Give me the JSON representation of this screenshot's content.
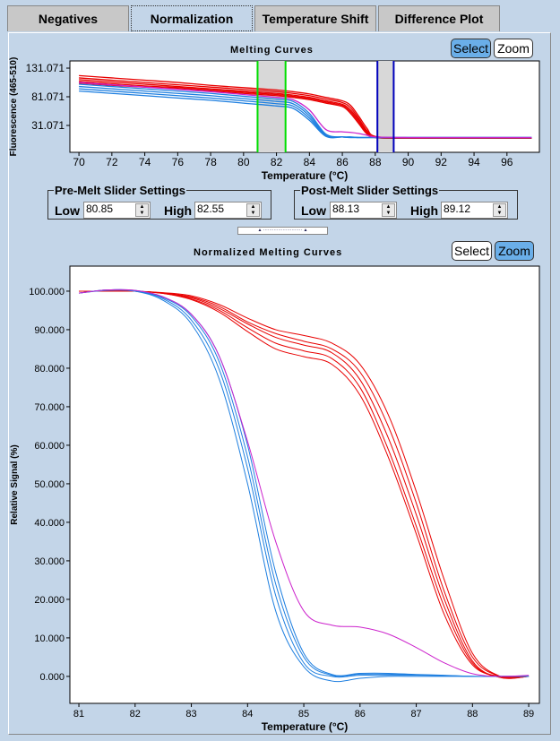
{
  "tabs": [
    {
      "label": "Negatives"
    },
    {
      "label": "Normalization",
      "active": true
    },
    {
      "label": "Temperature Shift"
    },
    {
      "label": "Difference Plot"
    }
  ],
  "top_buttons": {
    "select": "Select",
    "zoom": "Zoom",
    "active": "select"
  },
  "bottom_buttons": {
    "select": "Select",
    "zoom": "Zoom",
    "active": "zoom"
  },
  "pre_melt": {
    "title": "Pre-Melt Slider Settings",
    "low_label": "Low",
    "low": "80.85",
    "high_label": "High",
    "high": "82.55"
  },
  "post_melt": {
    "title": "Post-Melt Slider Settings",
    "low_label": "Low",
    "low": "88.13",
    "high_label": "High",
    "high": "89.12"
  },
  "colors": {
    "red": "#e80000",
    "blue": "#1e7fe0",
    "magenta": "#cc22cc",
    "pre_slider": "#00dd00",
    "post_slider": "#0000bb",
    "slider_band": "#d8d8d8"
  },
  "chart_data": [
    {
      "type": "line",
      "title": "Melting Curves",
      "xlabel": "Temperature (°C)",
      "ylabel": "Fluorescence (465-510)",
      "xlim": [
        69.45,
        97.97
      ],
      "ylim": [
        -15.8,
        143.6
      ],
      "xticks": [
        70,
        72,
        74,
        76,
        78,
        80,
        82,
        84,
        86,
        88,
        90,
        92,
        94,
        96
      ],
      "yticks": [
        31.071,
        81.071,
        131.071
      ],
      "ytick_labels": [
        "31.071",
        "81.071",
        "131.071"
      ],
      "grid": false,
      "sliders": {
        "pre": [
          80.85,
          82.55
        ],
        "post": [
          88.13,
          89.12
        ]
      },
      "x": [
        70,
        72,
        74,
        76,
        78,
        80,
        82,
        83,
        84,
        85,
        86,
        86.5,
        87,
        87.5,
        88,
        90,
        92,
        94,
        96,
        97.5
      ],
      "series": [
        {
          "color": "red",
          "values": [
            118,
            114,
            110,
            106,
            101,
            97,
            93,
            90,
            86,
            80,
            74,
            66,
            47,
            26,
            12,
            9,
            9,
            9,
            9,
            9
          ]
        },
        {
          "color": "red",
          "values": [
            114,
            110,
            106,
            102,
            98,
            94,
            90,
            87,
            83,
            77,
            71,
            62,
            43,
            22,
            10,
            9,
            9,
            9,
            9,
            9
          ]
        },
        {
          "color": "red",
          "values": [
            111,
            107,
            103,
            99,
            95,
            91,
            87,
            84,
            80,
            74,
            68,
            58,
            40,
            20,
            10,
            9,
            9,
            9,
            9,
            9
          ]
        },
        {
          "color": "red",
          "values": [
            108,
            104,
            100,
            97,
            93,
            89,
            85,
            82,
            78,
            72,
            66,
            55,
            37,
            18,
            10,
            9,
            9,
            9,
            9,
            9
          ]
        },
        {
          "color": "red",
          "values": [
            105,
            101,
            98,
            95,
            91,
            87,
            83,
            80,
            76,
            70,
            64,
            52,
            34,
            16,
            10,
            9,
            9,
            9,
            9,
            9
          ]
        },
        {
          "color": "blue",
          "values": [
            103,
            99,
            95,
            91,
            87,
            82,
            77,
            73,
            52,
            16,
            11,
            11,
            10,
            10,
            10,
            10,
            10,
            10,
            10,
            10
          ]
        },
        {
          "color": "blue",
          "values": [
            99,
            95,
            91,
            87,
            83,
            78,
            73,
            69,
            48,
            14,
            11,
            11,
            10,
            10,
            10,
            10,
            10,
            10,
            10,
            10
          ]
        },
        {
          "color": "blue",
          "values": [
            95,
            91,
            87,
            83,
            79,
            74,
            69,
            65,
            44,
            13,
            11,
            10,
            10,
            10,
            10,
            10,
            10,
            10,
            10,
            10
          ]
        },
        {
          "color": "blue",
          "values": [
            91,
            87,
            83,
            79,
            75,
            70,
            65,
            61,
            40,
            12,
            11,
            10,
            10,
            10,
            10,
            10,
            10,
            10,
            10,
            10
          ]
        },
        {
          "color": "magenta",
          "values": [
            106,
            102,
            98,
            94,
            90,
            85,
            80,
            76,
            58,
            24,
            20,
            19,
            17,
            14,
            11,
            10,
            10,
            10,
            10,
            10
          ]
        }
      ]
    },
    {
      "type": "line",
      "title": "Normalized Melting Curves",
      "xlabel": "Temperature (°C)",
      "ylabel": "Relative Signal (%)",
      "xlim": [
        80.84,
        89.19
      ],
      "ylim": [
        -7,
        106.5
      ],
      "xticks": [
        81,
        82,
        83,
        84,
        85,
        86,
        87,
        88,
        89
      ],
      "yticks": [
        0,
        10,
        20,
        30,
        40,
        50,
        60,
        70,
        80,
        90,
        100
      ],
      "ytick_labels": [
        "0.000",
        "10.000",
        "20.000",
        "30.000",
        "40.000",
        "50.000",
        "60.000",
        "70.000",
        "80.000",
        "90.000",
        "100.000"
      ],
      "grid": false,
      "x": [
        81,
        81.5,
        82,
        82.5,
        83,
        83.5,
        84,
        84.5,
        85,
        85.5,
        86,
        86.5,
        87,
        87.5,
        88,
        88.5,
        89
      ],
      "series": [
        {
          "color": "red",
          "values": [
            100,
            100,
            100,
            99.6,
            98.8,
            96.5,
            93,
            90,
            88.5,
            86.5,
            81,
            68,
            48,
            25,
            6,
            0,
            0
          ]
        },
        {
          "color": "red",
          "values": [
            100,
            100,
            100,
            99.5,
            98.5,
            96,
            92,
            89,
            87,
            85,
            79,
            65,
            45,
            22,
            5,
            0,
            0
          ]
        },
        {
          "color": "red",
          "values": [
            100,
            100,
            100,
            99.5,
            98.3,
            95.5,
            91.5,
            88,
            86,
            84,
            77,
            62,
            42,
            20,
            4,
            -0.3,
            0
          ]
        },
        {
          "color": "red",
          "values": [
            100,
            100,
            100,
            99.4,
            98,
            95,
            90.5,
            86.5,
            84.5,
            82.5,
            75,
            59,
            39,
            18,
            3.5,
            -0.3,
            0
          ]
        },
        {
          "color": "red",
          "values": [
            100,
            100,
            100,
            99.4,
            97.8,
            94.5,
            89.5,
            85,
            83,
            81,
            73,
            57,
            37,
            16,
            3,
            0,
            0
          ]
        },
        {
          "color": "blue",
          "values": [
            99.5,
            100.3,
            100.2,
            98.5,
            94,
            83,
            60,
            27,
            6,
            0.5,
            0.8,
            0.8,
            0.5,
            0.3,
            0,
            0,
            0
          ]
        },
        {
          "color": "blue",
          "values": [
            99.5,
            100.3,
            100.1,
            98.3,
            93.5,
            81.5,
            57,
            24,
            5,
            0.3,
            0.6,
            0.6,
            0.4,
            0.2,
            0,
            0,
            0
          ]
        },
        {
          "color": "blue",
          "values": [
            99.5,
            100.3,
            100,
            98,
            92.5,
            79.5,
            54,
            21,
            3.5,
            0,
            0.3,
            0.3,
            0.3,
            0.2,
            0,
            0,
            0
          ]
        },
        {
          "color": "blue",
          "values": [
            99.5,
            100.2,
            100,
            97.6,
            91.5,
            77,
            50,
            17,
            2.5,
            -1.2,
            -0.5,
            0,
            0,
            0,
            0,
            0,
            0
          ]
        },
        {
          "color": "magenta",
          "values": [
            99.5,
            100.3,
            100.2,
            98.5,
            94,
            83,
            61,
            35,
            17,
            13.3,
            12.8,
            11,
            7.5,
            3.5,
            0.7,
            0,
            0.3
          ]
        }
      ]
    }
  ]
}
